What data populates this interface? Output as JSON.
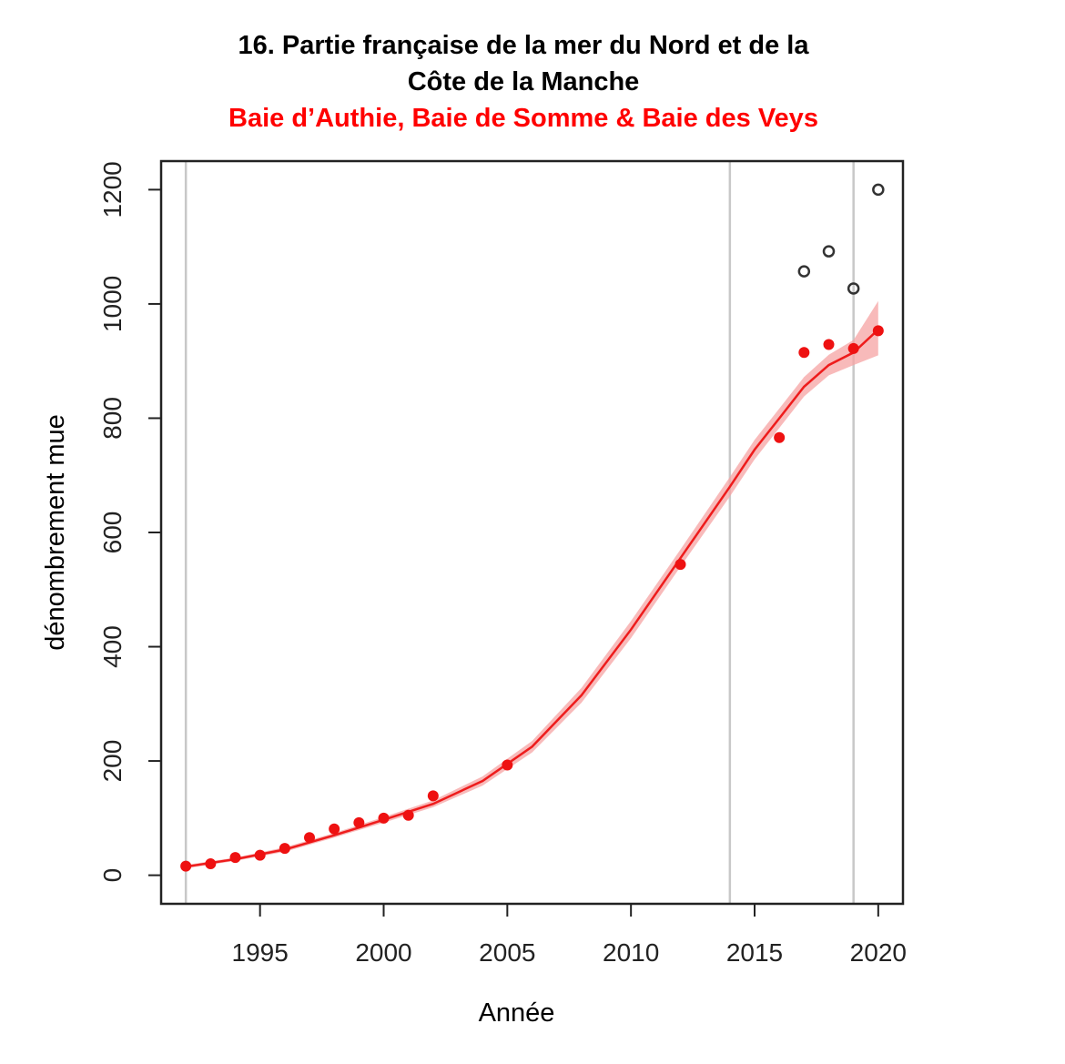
{
  "chart_data": {
    "type": "scatter",
    "title": "16. Partie française de la mer du Nord et de la",
    "title_line2": "Côte de la Manche",
    "subtitle": "Baie d’Authie, Baie de Somme & Baie des Veys",
    "xlabel": "Année",
    "ylabel": "dénombrement mue",
    "xlim": [
      1991.0,
      2021.0
    ],
    "ylim": [
      -50,
      1250
    ],
    "x_ticks": [
      1995,
      2000,
      2005,
      2010,
      2015,
      2020
    ],
    "y_ticks": [
      0,
      200,
      400,
      600,
      800,
      1000,
      1200
    ],
    "grid": false,
    "vertical_reference_lines": [
      1992,
      2014,
      2019
    ],
    "colors": {
      "fit": "#ee1c1c",
      "band": "#f6a3a3",
      "points": "#ee1111",
      "open_points": "#333333",
      "vlines": "#c8c8c8"
    },
    "series": [
      {
        "x": [
          1992,
          1993,
          1994,
          1995,
          1996,
          1997,
          1998,
          1999,
          2000,
          2001,
          2002,
          2005,
          2012,
          2016,
          2017,
          2018,
          2019,
          2020
        ],
        "y": [
          16,
          20,
          31,
          35,
          47,
          66,
          81,
          92,
          100,
          105,
          139,
          193,
          544,
          766,
          915,
          929,
          922,
          953
        ]
      },
      {
        "x": [
          2017,
          2018,
          2019,
          2020
        ],
        "y": [
          1057,
          1092,
          1027,
          1200
        ]
      }
    ],
    "fit_curve": {
      "x": [
        1992,
        1994,
        1996,
        1998,
        2000,
        2002,
        2004,
        2006,
        2008,
        2010,
        2012,
        2014,
        2015,
        2016,
        2017,
        2018,
        2019,
        2020
      ],
      "y": [
        15,
        28,
        45,
        70,
        97,
        125,
        165,
        225,
        315,
        430,
        555,
        680,
        745,
        800,
        855,
        893,
        915,
        955
      ],
      "lower": [
        12,
        25,
        41,
        66,
        92,
        119,
        157,
        215,
        302,
        415,
        540,
        663,
        728,
        783,
        838,
        875,
        893,
        910
      ],
      "upper": [
        18,
        31,
        49,
        74,
        102,
        131,
        173,
        235,
        328,
        445,
        570,
        697,
        762,
        817,
        872,
        911,
        937,
        1005
      ]
    }
  }
}
